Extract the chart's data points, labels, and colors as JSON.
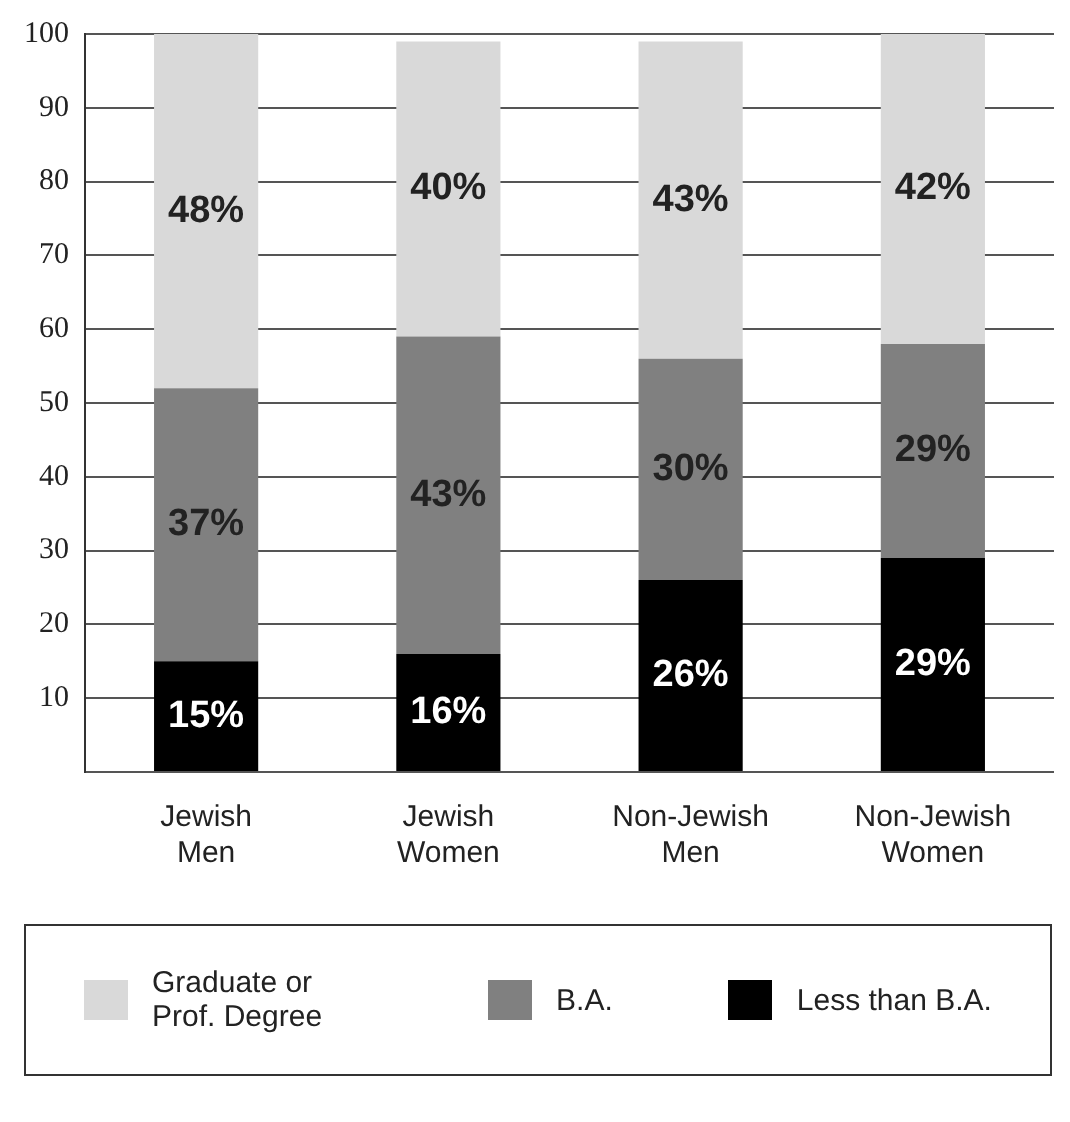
{
  "chart_data": {
    "type": "bar",
    "stacked": true,
    "categories": [
      "Jewish Men",
      "Jewish Women",
      "Non-Jewish Men",
      "Non-Jewish Women"
    ],
    "series": [
      {
        "name": "Less than B.A.",
        "color": "#000000",
        "values": [
          15,
          16,
          26,
          29
        ],
        "value_labels": [
          "15%",
          "16%",
          "26%",
          "29%"
        ]
      },
      {
        "name": "B.A.",
        "color": "#808080",
        "values": [
          37,
          43,
          30,
          29
        ],
        "value_labels": [
          "37%",
          "43%",
          "30%",
          "29%"
        ]
      },
      {
        "name": "Graduate or Prof. Degree",
        "color": "#d9d9d9",
        "values": [
          48,
          40,
          43,
          42
        ],
        "value_labels": [
          "48%",
          "40%",
          "43%",
          "42%"
        ]
      }
    ],
    "ylim": [
      0,
      100
    ],
    "yticks": [
      10,
      20,
      30,
      40,
      50,
      60,
      70,
      80,
      90,
      100
    ],
    "grid": "y",
    "legend": "bottom"
  }
}
